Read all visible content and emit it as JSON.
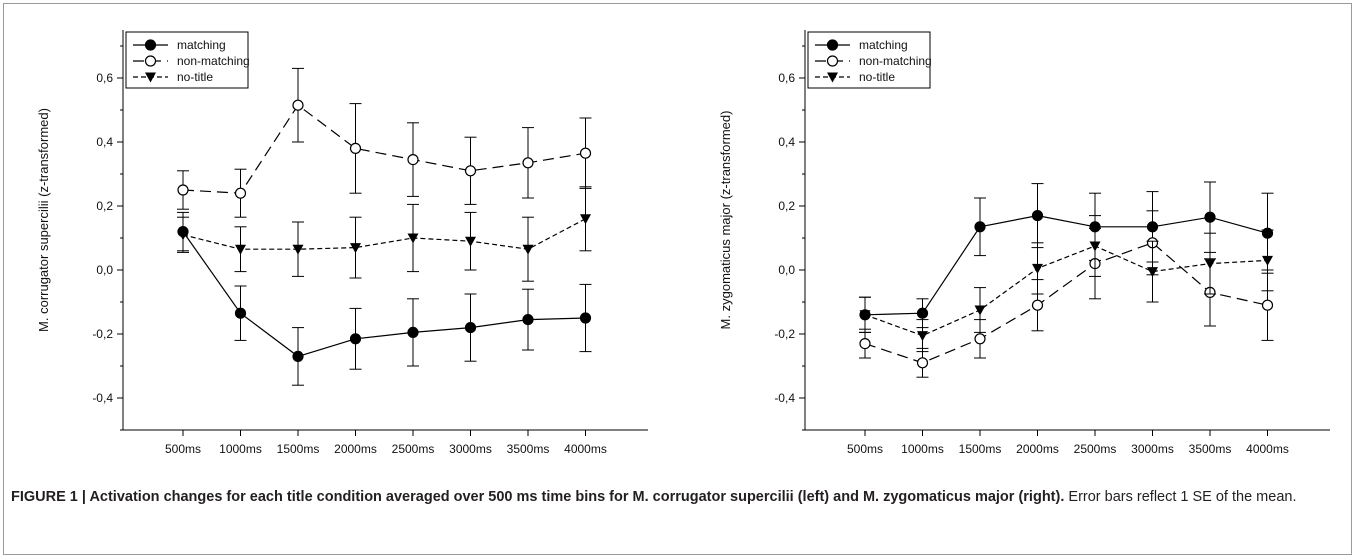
{
  "caption": {
    "label": "FIGURE 1 | Activation changes for each title condition averaged over 500 ms time bins for M. corrugator supercilii (left) and M. zygomaticus major (right).",
    "note": "Error bars reflect 1 SE of the mean."
  },
  "chart_data": [
    {
      "type": "line",
      "title": "",
      "xlabel": "",
      "ylabel": "M. corrugator supercilii (z-transformed)",
      "categories": [
        "500ms",
        "1000ms",
        "1500ms",
        "2000ms",
        "2500ms",
        "3000ms",
        "3500ms",
        "4000ms"
      ],
      "ylim": [
        -0.5,
        0.75
      ],
      "yticks": [
        -0.4,
        -0.2,
        0.0,
        0.2,
        0.4,
        0.6
      ],
      "ytick_labels": [
        "-0,4",
        "-0,2",
        "0,0",
        "0,2",
        "0,4",
        "0,6"
      ],
      "legend": "top-left",
      "grid": false,
      "series": [
        {
          "name": "matching",
          "marker": "filled-circle",
          "line": "solid",
          "values": [
            0.12,
            -0.135,
            -0.27,
            -0.215,
            -0.195,
            -0.18,
            -0.155,
            -0.15
          ],
          "errors": [
            0.06,
            0.085,
            0.09,
            0.095,
            0.105,
            0.105,
            0.095,
            0.105
          ]
        },
        {
          "name": "non-matching",
          "marker": "open-circle",
          "line": "long-dash",
          "values": [
            0.25,
            0.24,
            0.515,
            0.38,
            0.345,
            0.31,
            0.335,
            0.365
          ],
          "errors": [
            0.06,
            0.075,
            0.115,
            0.14,
            0.115,
            0.105,
            0.11,
            0.11
          ]
        },
        {
          "name": "no-title",
          "marker": "filled-triangle-down",
          "line": "short-dash",
          "values": [
            0.11,
            0.065,
            0.065,
            0.07,
            0.1,
            0.09,
            0.065,
            0.16
          ],
          "errors": [
            0.055,
            0.07,
            0.085,
            0.095,
            0.105,
            0.09,
            0.1,
            0.1
          ]
        }
      ]
    },
    {
      "type": "line",
      "title": "",
      "xlabel": "",
      "ylabel": "M. zygomaticus major (z-transformed)",
      "categories": [
        "500ms",
        "1000ms",
        "1500ms",
        "2000ms",
        "2500ms",
        "3000ms",
        "3500ms",
        "4000ms"
      ],
      "ylim": [
        -0.5,
        0.75
      ],
      "yticks": [
        -0.4,
        -0.2,
        0.0,
        0.2,
        0.4,
        0.6
      ],
      "ytick_labels": [
        "-0,4",
        "-0,2",
        "0,0",
        "0,2",
        "0,4",
        "0,6"
      ],
      "legend": "top-left",
      "grid": false,
      "series": [
        {
          "name": "matching",
          "marker": "filled-circle",
          "line": "solid",
          "values": [
            -0.14,
            -0.135,
            0.135,
            0.17,
            0.135,
            0.135,
            0.165,
            0.115
          ],
          "errors": [
            0.055,
            0.045,
            0.09,
            0.1,
            0.105,
            0.11,
            0.11,
            0.125
          ]
        },
        {
          "name": "non-matching",
          "marker": "open-circle",
          "line": "long-dash",
          "values": [
            -0.23,
            -0.29,
            -0.215,
            -0.11,
            0.02,
            0.085,
            -0.07,
            -0.11
          ],
          "errors": [
            0.045,
            0.045,
            0.06,
            0.08,
            0.11,
            0.1,
            0.105,
            0.11
          ]
        },
        {
          "name": "no-title",
          "marker": "filled-triangle-down",
          "line": "short-dash",
          "values": [
            -0.14,
            -0.205,
            -0.125,
            0.005,
            0.075,
            -0.005,
            0.02,
            0.03
          ],
          "errors": [
            0.055,
            0.05,
            0.07,
            0.08,
            0.095,
            0.095,
            0.095,
            0.095
          ]
        }
      ]
    }
  ]
}
